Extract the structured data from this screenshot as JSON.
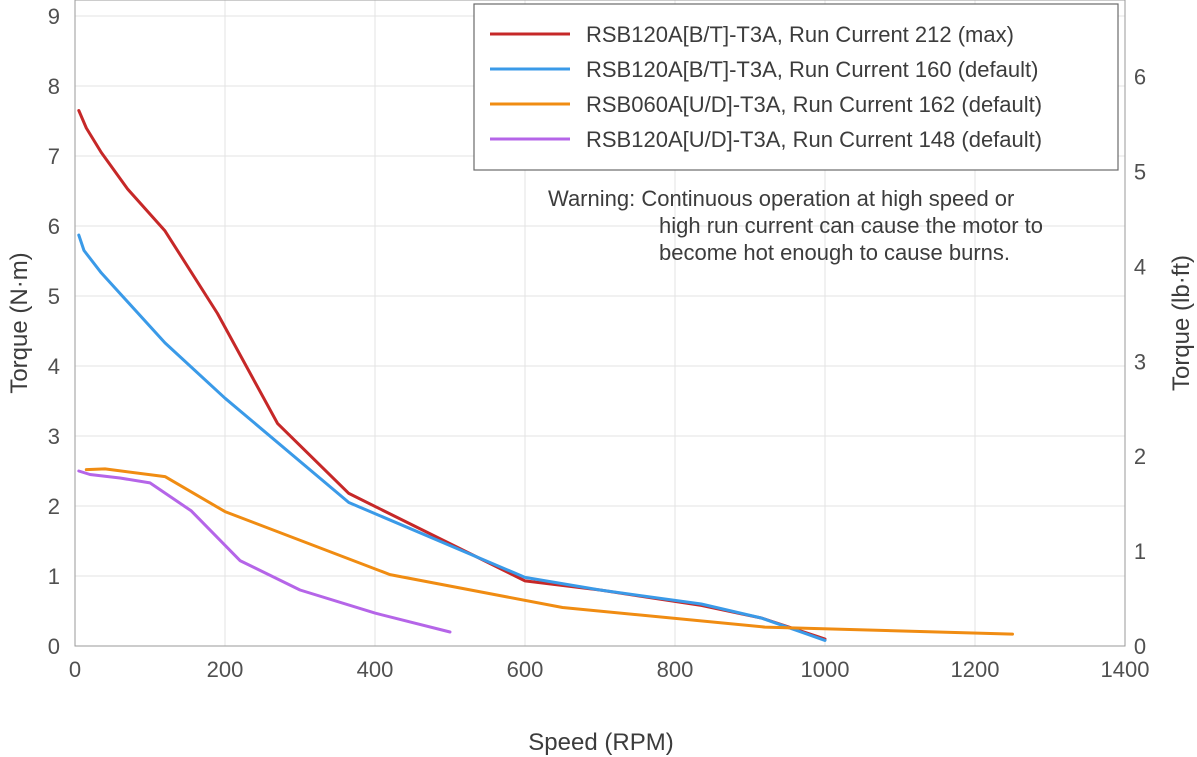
{
  "chart_data": {
    "type": "line",
    "xlabel": "Speed (RPM)",
    "ylabel": "Torque (N·m)",
    "y2label": "Torque (lb·ft)",
    "xlim": [
      0,
      1400
    ],
    "ylim": [
      0,
      9
    ],
    "y2lim": [
      0,
      6.638
    ],
    "x_ticks": [
      "0",
      "200",
      "400",
      "600",
      "800",
      "1000",
      "1200",
      "1400"
    ],
    "y_ticks": [
      "0",
      "1",
      "2",
      "3",
      "4",
      "5",
      "6",
      "7",
      "8",
      "9"
    ],
    "y2_ticks": [
      "0",
      "1",
      "2",
      "3",
      "4",
      "5",
      "6"
    ],
    "grid": true,
    "legend_position": "top-right",
    "series": [
      {
        "name": "RSB120A[B/T]-T3A, Run Current 212 (max)",
        "color": "#c62828",
        "x": [
          5,
          15,
          35,
          70,
          120,
          190,
          270,
          365,
          600,
          700,
          835,
          915,
          1000
        ],
        "y": [
          7.65,
          7.4,
          7.05,
          6.53,
          5.93,
          4.75,
          3.18,
          2.18,
          0.93,
          0.8,
          0.58,
          0.4,
          0.1
        ]
      },
      {
        "name": "RSB120A[B/T]-T3A, Run Current 160 (default)",
        "color": "#3a9ae8",
        "x": [
          5,
          12,
          35,
          120,
          200,
          365,
          600,
          700,
          835,
          915,
          1000
        ],
        "y": [
          5.87,
          5.65,
          5.33,
          4.33,
          3.54,
          2.05,
          0.98,
          0.8,
          0.6,
          0.4,
          0.08
        ]
      },
      {
        "name": "RSB060A[U/D]-T3A, Run Current 162 (default)",
        "color": "#f08c12",
        "x": [
          15,
          40,
          120,
          200,
          420,
          650,
          920,
          1250
        ],
        "y": [
          2.52,
          2.53,
          2.42,
          1.92,
          1.02,
          0.55,
          0.27,
          0.17
        ]
      },
      {
        "name": "RSB120A[U/D]-T3A, Run Current 148 (default)",
        "color": "#b565e8",
        "x": [
          5,
          20,
          60,
          100,
          155,
          220,
          300,
          400,
          500
        ],
        "y": [
          2.5,
          2.45,
          2.4,
          2.33,
          1.93,
          1.22,
          0.8,
          0.47,
          0.2
        ]
      }
    ],
    "annotation": {
      "lines": [
        "Warning: Continuous operation at high speed or",
        "high run current can cause the motor to",
        "become hot enough to cause burns."
      ]
    }
  }
}
